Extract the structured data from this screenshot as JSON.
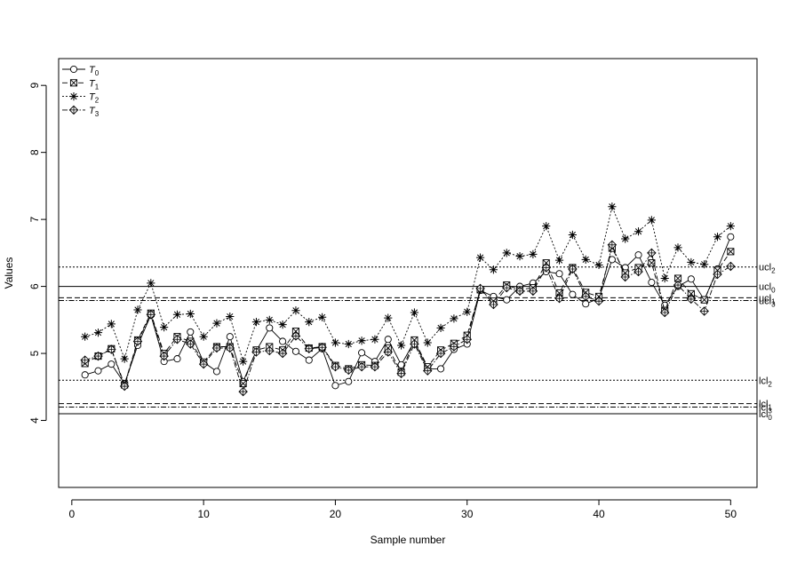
{
  "chart_data": {
    "type": "line",
    "xlabel": "Sample number",
    "ylabel": "Values",
    "xlim": [
      -1,
      52
    ],
    "ylim": [
      3.0,
      9.4
    ],
    "xticks": [
      0,
      10,
      20,
      30,
      40,
      50
    ],
    "yticks": [
      4,
      5,
      6,
      7,
      8,
      9
    ],
    "legend_position": "top-left",
    "grid": false,
    "x": [
      1,
      2,
      3,
      4,
      5,
      6,
      7,
      8,
      9,
      10,
      11,
      12,
      13,
      14,
      15,
      16,
      17,
      18,
      19,
      20,
      21,
      22,
      23,
      24,
      25,
      26,
      27,
      28,
      29,
      30,
      31,
      32,
      33,
      34,
      35,
      36,
      37,
      38,
      39,
      40,
      41,
      42,
      43,
      44,
      45,
      46,
      47,
      48,
      49,
      50
    ],
    "series": [
      {
        "name": "T",
        "subscript": "0",
        "marker": "circle",
        "line": "solid",
        "values": [
          4.68,
          4.74,
          4.84,
          4.55,
          5.12,
          5.57,
          4.88,
          4.92,
          5.32,
          4.87,
          4.73,
          5.25,
          4.58,
          5.04,
          5.38,
          5.18,
          5.03,
          4.9,
          5.07,
          4.52,
          4.58,
          5.01,
          4.88,
          5.21,
          4.83,
          5.18,
          4.77,
          4.77,
          5.06,
          5.14,
          5.94,
          5.85,
          5.8,
          6.0,
          6.05,
          6.22,
          6.19,
          5.88,
          5.74,
          5.82,
          6.4,
          6.28,
          6.47,
          6.06,
          5.72,
          6.0,
          6.11,
          5.8,
          6.26,
          6.74
        ]
      },
      {
        "name": "T",
        "subscript": "1",
        "marker": "boxed-x",
        "line": "dashed",
        "values": [
          4.85,
          4.96,
          5.07,
          4.53,
          5.2,
          5.6,
          5.0,
          5.25,
          5.18,
          4.87,
          5.1,
          5.1,
          4.55,
          5.05,
          5.1,
          5.05,
          5.33,
          5.08,
          5.1,
          4.82,
          4.77,
          4.83,
          4.82,
          5.08,
          4.72,
          5.2,
          4.8,
          5.05,
          5.15,
          5.27,
          5.95,
          5.78,
          6.02,
          5.95,
          5.98,
          6.35,
          5.9,
          6.28,
          5.91,
          5.85,
          6.57,
          6.2,
          6.28,
          6.35,
          5.64,
          6.12,
          5.89,
          5.8,
          6.24,
          6.52
        ]
      },
      {
        "name": "T",
        "subscript": "2",
        "marker": "star",
        "line": "dotted",
        "values": [
          5.25,
          5.31,
          5.44,
          4.92,
          5.65,
          6.05,
          5.39,
          5.58,
          5.59,
          5.25,
          5.45,
          5.55,
          4.88,
          5.47,
          5.5,
          5.43,
          5.64,
          5.47,
          5.54,
          5.16,
          5.14,
          5.19,
          5.21,
          5.53,
          5.12,
          5.61,
          5.16,
          5.38,
          5.52,
          5.62,
          6.43,
          6.25,
          6.5,
          6.45,
          6.48,
          6.9,
          6.39,
          6.77,
          6.4,
          6.32,
          7.19,
          6.71,
          6.82,
          6.99,
          6.12,
          6.58,
          6.36,
          6.33,
          6.74,
          6.9
        ]
      },
      {
        "name": "T",
        "subscript": "3",
        "marker": "boxed-diamond",
        "line": "dash-dot",
        "values": [
          4.9,
          4.96,
          5.06,
          4.51,
          5.18,
          5.58,
          4.96,
          5.21,
          5.14,
          4.84,
          5.08,
          5.08,
          4.43,
          5.02,
          5.04,
          5.0,
          5.26,
          5.07,
          5.09,
          4.8,
          4.75,
          4.8,
          4.8,
          5.02,
          4.7,
          5.14,
          4.74,
          5.0,
          5.1,
          5.21,
          5.97,
          5.73,
          5.98,
          5.93,
          5.93,
          6.28,
          5.82,
          6.26,
          5.85,
          5.78,
          6.62,
          6.14,
          6.22,
          6.5,
          5.61,
          6.02,
          5.81,
          5.63,
          6.18,
          6.3
        ]
      }
    ],
    "reference_lines": [
      {
        "label": "ucl",
        "subscript": "2",
        "y": 6.29,
        "style": "dotted"
      },
      {
        "label": "ucl",
        "subscript": "0",
        "y": 6.0,
        "style": "solid"
      },
      {
        "label": "ucl",
        "subscript": "1",
        "y": 5.83,
        "style": "dashed"
      },
      {
        "label": "ucl",
        "subscript": "3",
        "y": 5.79,
        "style": "dash-dot"
      },
      {
        "label": "lcl",
        "subscript": "2",
        "y": 4.6,
        "style": "dotted"
      },
      {
        "label": "lcl",
        "subscript": "1",
        "y": 4.25,
        "style": "dashed"
      },
      {
        "label": "lcl",
        "subscript": "3",
        "y": 4.2,
        "style": "dash-dot"
      },
      {
        "label": "lcl",
        "subscript": "0",
        "y": 4.1,
        "style": "solid"
      }
    ]
  }
}
